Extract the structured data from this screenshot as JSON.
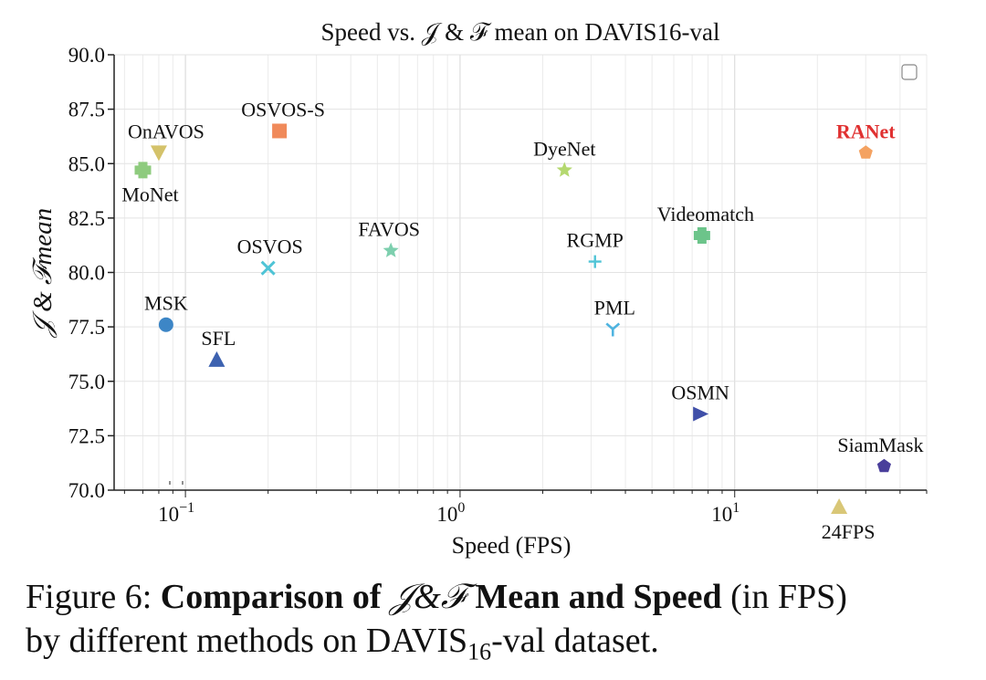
{
  "chart_data": {
    "type": "scatter",
    "title": "Speed vs. 𝒥 & ℱ mean on DAVIS16-val",
    "xlabel": "Speed (FPS)",
    "ylabel": "𝒥 & ℱmean",
    "xscale": "log",
    "xlim": [
      0.055,
      50
    ],
    "ylim": [
      70.0,
      90.0
    ],
    "yticks": [
      "70.0",
      "72.5",
      "75.0",
      "77.5",
      "80.0",
      "82.5",
      "85.0",
      "87.5",
      "90.0"
    ],
    "xticks": [
      {
        "value": 0.1,
        "base": "10",
        "exp": "−1"
      },
      {
        "value": 1,
        "base": "10",
        "exp": "0"
      },
      {
        "value": 10,
        "base": "10",
        "exp": "1"
      }
    ],
    "grid": true,
    "points": [
      {
        "name": "OnAVOS",
        "x": 0.08,
        "y": 85.5,
        "marker": "triangle-down",
        "color": "#d4c26a",
        "label_pos": "above"
      },
      {
        "name": "MoNet",
        "x": 0.07,
        "y": 84.7,
        "marker": "plus",
        "color": "#8ecb7e",
        "label_pos": "below"
      },
      {
        "name": "OSVOS-S",
        "x": 0.22,
        "y": 86.5,
        "marker": "square",
        "color": "#f08a5a",
        "label_pos": "above"
      },
      {
        "name": "OSVOS",
        "x": 0.2,
        "y": 80.2,
        "marker": "x",
        "color": "#4fc4d6",
        "label_pos": "above"
      },
      {
        "name": "FAVOS",
        "x": 0.56,
        "y": 81.0,
        "marker": "star",
        "color": "#7dcfae",
        "label_pos": "above"
      },
      {
        "name": "MSK",
        "x": 0.085,
        "y": 77.6,
        "marker": "circle",
        "color": "#3d86c6",
        "label_pos": "above"
      },
      {
        "name": "SFL",
        "x": 0.13,
        "y": 76.0,
        "marker": "triangle-up",
        "color": "#3d62b0",
        "label_pos": "above"
      },
      {
        "name": "DyeNet",
        "x": 2.4,
        "y": 84.7,
        "marker": "star",
        "color": "#b4d86f",
        "label_pos": "above"
      },
      {
        "name": "RGMP",
        "x": 3.1,
        "y": 80.5,
        "marker": "thin-plus",
        "color": "#4fc4d6",
        "label_pos": "above"
      },
      {
        "name": "PML",
        "x": 3.6,
        "y": 77.4,
        "marker": "tri-down",
        "color": "#4fb4e0",
        "label_pos": "above"
      },
      {
        "name": "Videomatch",
        "x": 7.6,
        "y": 81.7,
        "marker": "plus",
        "color": "#6cc48a",
        "label_pos": "above"
      },
      {
        "name": "OSMN",
        "x": 7.5,
        "y": 73.5,
        "marker": "triangle-right",
        "color": "#3f4fa8",
        "label_pos": "above"
      },
      {
        "name": "RANet",
        "x": 30,
        "y": 85.5,
        "marker": "pentagon",
        "color": "#f4a261",
        "label_pos": "above",
        "highlight": true,
        "label_color": "#e03131"
      },
      {
        "name": "SiamMask",
        "x": 35,
        "y": 71.1,
        "marker": "pentagon",
        "color": "#4a3f9b",
        "label_pos": "above"
      }
    ],
    "reference_marker": {
      "name": "24FPS",
      "x": 24,
      "marker": "triangle-up",
      "color": "#d9c777"
    }
  },
  "caption": {
    "prefix": "Figure 6: ",
    "bold_lead": "Comparison of ",
    "jf": "𝒥&ℱ",
    "bold_tail": " Mean and Speed",
    "rest1": " (in FPS)",
    "line2_pre": "by different methods on DAVIS",
    "line2_sub": "16",
    "line2_post": "-val dataset."
  }
}
